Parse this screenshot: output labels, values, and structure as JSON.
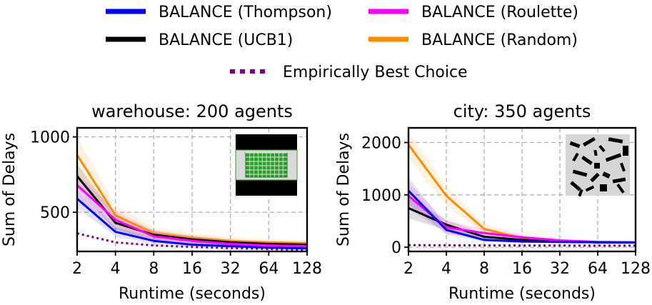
{
  "legend": {
    "placement": "top",
    "items": [
      {
        "label": "BALANCE (Thompson)",
        "color": "#0000ff",
        "style": "solid"
      },
      {
        "label": "BALANCE (Roulette)",
        "color": "#ff00ff",
        "style": "solid"
      },
      {
        "label": "BALANCE (UCB1)",
        "color": "#000000",
        "style": "solid"
      },
      {
        "label": "BALANCE (Random)",
        "color": "#ff8c00",
        "style": "solid"
      },
      {
        "label": "Empirically Best Choice",
        "color": "#800080",
        "style": "dotted"
      }
    ]
  },
  "chart_data": [
    {
      "type": "line",
      "title": "warehouse: 200 agents",
      "xlabel": "Runtime (seconds)",
      "ylabel": "Sum of Delays",
      "x_scale": "log2",
      "x": [
        2,
        4,
        8,
        16,
        32,
        64,
        128
      ],
      "xticks": [
        "2",
        "4",
        "8",
        "16",
        "32",
        "64",
        "128"
      ],
      "yticks": [
        "500",
        "1000"
      ],
      "ylim": [
        240,
        1060
      ],
      "grid": true,
      "inset": "warehouse-map",
      "series": [
        {
          "name": "BALANCE (Thompson)",
          "color": "#0000ff",
          "values": [
            590,
            370,
            310,
            285,
            275,
            265,
            260
          ],
          "band": [
            60,
            30,
            20,
            15,
            12,
            10,
            10
          ]
        },
        {
          "name": "BALANCE (Roulette)",
          "color": "#ff00ff",
          "values": [
            680,
            450,
            340,
            310,
            290,
            280,
            275
          ],
          "band": [
            80,
            60,
            40,
            30,
            25,
            20,
            20
          ]
        },
        {
          "name": "BALANCE (UCB1)",
          "color": "#000000",
          "values": [
            740,
            430,
            350,
            320,
            300,
            290,
            285
          ],
          "band": [
            80,
            50,
            30,
            25,
            20,
            15,
            15
          ]
        },
        {
          "name": "BALANCE (Random)",
          "color": "#ff8c00",
          "values": [
            880,
            480,
            360,
            330,
            310,
            300,
            295
          ],
          "band": [
            120,
            70,
            40,
            30,
            25,
            20,
            20
          ]
        },
        {
          "name": "Empirically Best Choice",
          "color": "#800080",
          "style": "dotted",
          "values": [
            360,
            300,
            280,
            270,
            262,
            256,
            250
          ]
        }
      ]
    },
    {
      "type": "line",
      "title": "city: 350 agents",
      "xlabel": "Runtime (seconds)",
      "ylabel": "Sum of Delays",
      "x_scale": "log2",
      "x": [
        2,
        4,
        8,
        16,
        32,
        64,
        128
      ],
      "xticks": [
        "2",
        "4",
        "8",
        "16",
        "32",
        "64",
        "128"
      ],
      "yticks": [
        "0",
        "1000",
        "2000"
      ],
      "ylim": [
        -80,
        2280
      ],
      "grid": true,
      "inset": "city-map",
      "series": [
        {
          "name": "BALANCE (Thompson)",
          "color": "#0000ff",
          "values": [
            1080,
            330,
            140,
            110,
            100,
            95,
            90
          ],
          "band": [
            250,
            80,
            40,
            25,
            20,
            15,
            15
          ]
        },
        {
          "name": "BALANCE (Roulette)",
          "color": "#ff00ff",
          "values": [
            980,
            380,
            270,
            190,
            130,
            100,
            95
          ],
          "band": [
            250,
            120,
            80,
            50,
            35,
            25,
            20
          ]
        },
        {
          "name": "BALANCE (UCB1)",
          "color": "#000000",
          "values": [
            750,
            430,
            200,
            140,
            110,
            95,
            90
          ],
          "band": [
            200,
            100,
            50,
            30,
            20,
            15,
            15
          ]
        },
        {
          "name": "BALANCE (Random)",
          "color": "#ff8c00",
          "values": [
            1960,
            980,
            350,
            170,
            120,
            100,
            95
          ],
          "band": [
            250,
            180,
            100,
            60,
            30,
            20,
            20
          ]
        },
        {
          "name": "Empirically Best Choice",
          "color": "#800080",
          "style": "dotted",
          "values": [
            40,
            38,
            35,
            33,
            32,
            31,
            30
          ]
        }
      ]
    }
  ]
}
